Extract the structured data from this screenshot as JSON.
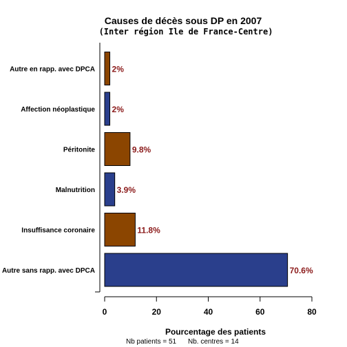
{
  "chart_data": {
    "type": "bar",
    "orientation": "horizontal",
    "title": "Causes de décès sous DP en 2007",
    "subtitle": "(Inter région Ile de France-Centre)",
    "xlabel": "Pourcentage des patients",
    "ylabel": "",
    "xlim": [
      0,
      80
    ],
    "xticks": [
      0,
      20,
      40,
      60,
      80
    ],
    "categories": [
      "Autre sans rapp. avec DPCA",
      "Insuffisance coronaire",
      "Malnutrition",
      "Péritonite",
      "Affection néoplastique",
      "Autre en rapp. avec DPCA"
    ],
    "values": [
      70.6,
      11.8,
      3.9,
      9.8,
      2,
      2
    ],
    "value_labels": [
      "70.6%",
      "11.8%",
      "3.9%",
      "9.8%",
      "2%",
      "2%"
    ],
    "colors": [
      "#2a3f8c",
      "#8b4500",
      "#2a3f8c",
      "#8b4500",
      "#2a3f8c",
      "#8b4500"
    ],
    "label_color": "#8b1a1a",
    "grid": false,
    "legend": "none"
  },
  "footer": {
    "patients": "Nb patients =  51",
    "centres": "Nb. centres =  14"
  }
}
